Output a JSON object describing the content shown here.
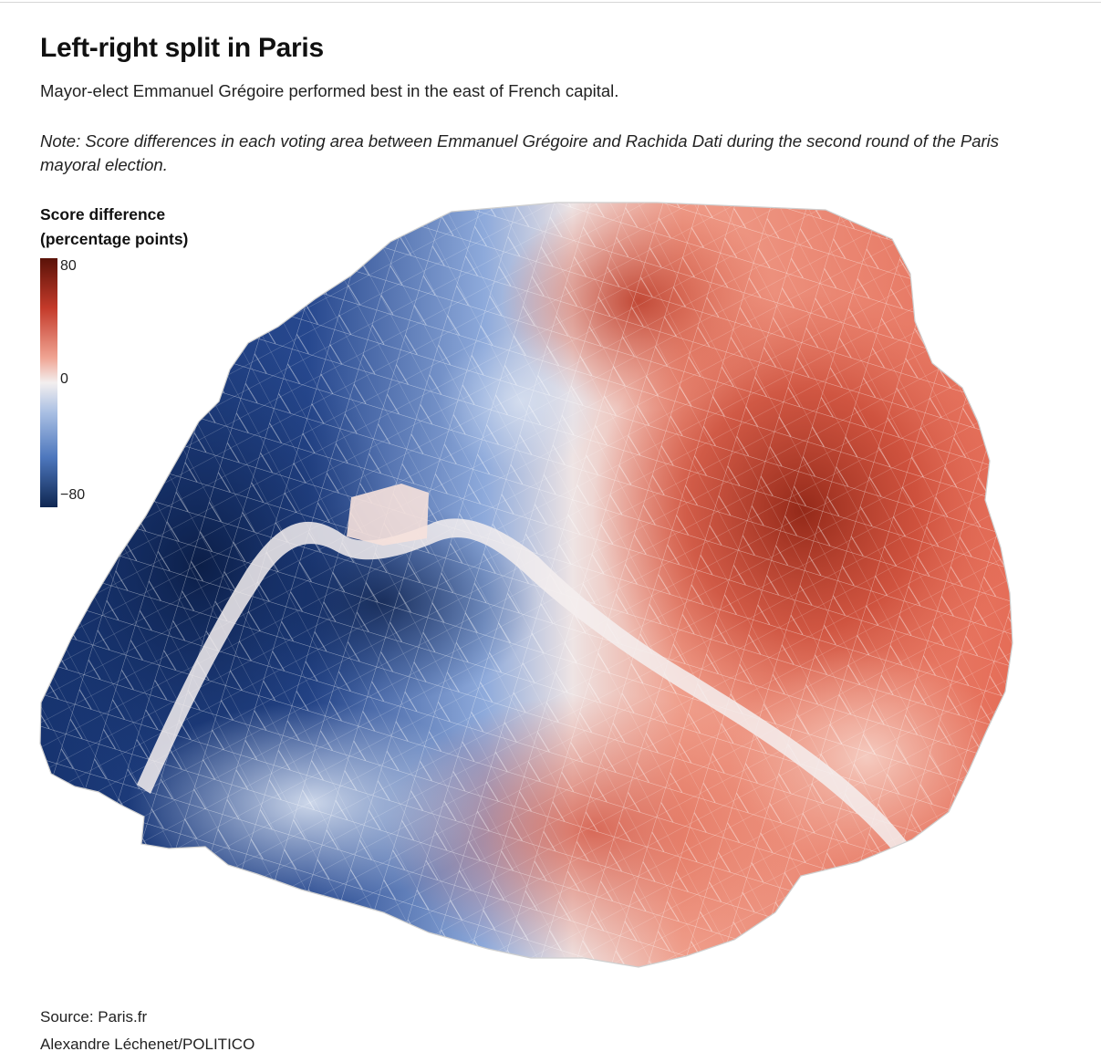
{
  "title": "Left-right split in Paris",
  "subtitle": "Mayor-elect Emmanuel Grégoire performed best in the east of French capital.",
  "note": "Note: Score differences in each voting area between Emmanuel Grégoire and Rachida Dati during the second round of the Paris mayoral election.",
  "legend": {
    "title_line1": "Score difference",
    "title_line2": "(percentage points)",
    "max": "80",
    "mid": "0",
    "min": "−80",
    "colors": {
      "max": "#5a1208",
      "mid": "#f3efef",
      "min": "#0f2752"
    }
  },
  "source": "Source: Paris.fr",
  "credit": "Alexandre Léchenet/POLITICO"
}
